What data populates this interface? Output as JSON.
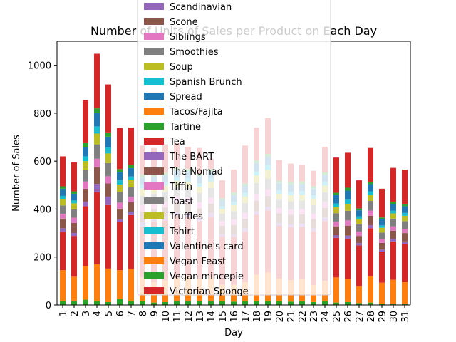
{
  "chart_data": {
    "type": "bar",
    "stacked": true,
    "title": "Number of Units of Sales per Product on Each Day",
    "xlabel": "Day",
    "ylabel": "Number of Sales",
    "ylim": [
      0,
      1100
    ],
    "yticks": [
      0,
      200,
      400,
      600,
      800,
      1000
    ],
    "grid": false,
    "legend_position": "upper center (overlapping plot)",
    "categories": [
      "1",
      "2",
      "3",
      "4",
      "5",
      "6",
      "7",
      "8",
      "9",
      "10",
      "11",
      "12",
      "13",
      "14",
      "15",
      "16",
      "17",
      "18",
      "19",
      "20",
      "21",
      "22",
      "23",
      "24",
      "25",
      "26",
      "27",
      "28",
      "29",
      "30",
      "31"
    ],
    "totals": [
      620,
      595,
      855,
      1048,
      920,
      738,
      740,
      665,
      655,
      670,
      675,
      660,
      655,
      610,
      520,
      565,
      665,
      740,
      780,
      605,
      590,
      585,
      560,
      660,
      615,
      635,
      520,
      655,
      485,
      572,
      565
    ],
    "series": [
      {
        "name": "Tartine",
        "color": "#2ca02c",
        "values": [
          15,
          18,
          22,
          15,
          12,
          25,
          15,
          15,
          10,
          12,
          18,
          18,
          18,
          18,
          15,
          14,
          15,
          16,
          15,
          15,
          14,
          16,
          12,
          15,
          10,
          12,
          8,
          10,
          3,
          5,
          5
        ]
      },
      {
        "name": "Vegan Feast",
        "color": "#ff7f0e",
        "values": [
          130,
          100,
          140,
          155,
          140,
          120,
          135,
          100,
          85,
          90,
          95,
          100,
          90,
          100,
          70,
          70,
          80,
          110,
          120,
          95,
          90,
          90,
          70,
          85,
          105,
          95,
          70,
          110,
          90,
          100,
          90
        ]
      },
      {
        "name": "Tea",
        "color": "#d62728",
        "values": [
          160,
          170,
          250,
          300,
          265,
          200,
          225,
          210,
          250,
          250,
          260,
          250,
          240,
          250,
          200,
          200,
          210,
          250,
          260,
          220,
          220,
          220,
          220,
          250,
          165,
          170,
          170,
          200,
          130,
          160,
          160
        ]
      },
      {
        "name": "The BART",
        "color": "#9467bd",
        "values": [
          15,
          12,
          18,
          35,
          35,
          12,
          12,
          20,
          15,
          15,
          15,
          15,
          15,
          15,
          10,
          12,
          15,
          15,
          15,
          12,
          12,
          12,
          12,
          15,
          10,
          12,
          10,
          12,
          8,
          10,
          10
        ]
      },
      {
        "name": "The Nomad",
        "color": "#8c564b",
        "values": [
          40,
          42,
          55,
          70,
          55,
          45,
          42,
          45,
          40,
          40,
          40,
          40,
          40,
          40,
          35,
          38,
          40,
          45,
          45,
          40,
          40,
          40,
          38,
          40,
          38,
          42,
          30,
          40,
          28,
          35,
          35
        ]
      },
      {
        "name": "Tiffin",
        "color": "#e377c2",
        "values": [
          20,
          22,
          30,
          35,
          30,
          25,
          22,
          25,
          25,
          25,
          25,
          25,
          25,
          25,
          20,
          22,
          25,
          28,
          28,
          22,
          22,
          22,
          22,
          25,
          20,
          22,
          18,
          22,
          15,
          18,
          18
        ]
      },
      {
        "name": "Toast",
        "color": "#7f7f7f",
        "values": [
          35,
          35,
          50,
          60,
          55,
          45,
          40,
          40,
          40,
          40,
          40,
          40,
          40,
          40,
          30,
          35,
          40,
          45,
          45,
          35,
          35,
          35,
          35,
          40,
          35,
          40,
          30,
          40,
          28,
          32,
          32
        ]
      },
      {
        "name": "Truffles",
        "color": "#bcbd22",
        "values": [
          25,
          25,
          35,
          45,
          40,
          30,
          30,
          30,
          25,
          25,
          25,
          25,
          25,
          25,
          20,
          25,
          28,
          30,
          35,
          25,
          25,
          25,
          25,
          28,
          25,
          28,
          22,
          25,
          20,
          22,
          22
        ]
      },
      {
        "name": "Tshirt",
        "color": "#17becf",
        "values": [
          15,
          12,
          20,
          30,
          25,
          18,
          15,
          18,
          15,
          15,
          15,
          15,
          15,
          15,
          12,
          15,
          15,
          18,
          20,
          15,
          15,
          15,
          15,
          15,
          15,
          18,
          12,
          15,
          10,
          12,
          12
        ]
      },
      {
        "name": "Valentine's card",
        "color": "#1f77b4",
        "values": [
          30,
          28,
          40,
          55,
          45,
          35,
          35,
          30,
          30,
          30,
          30,
          30,
          30,
          30,
          25,
          28,
          30,
          35,
          35,
          30,
          30,
          30,
          28,
          30,
          35,
          38,
          25,
          30,
          25,
          28,
          28
        ]
      },
      {
        "name": "Vegan mincepie",
        "color": "#2ca02c",
        "values": [
          10,
          10,
          15,
          20,
          18,
          12,
          12,
          12,
          10,
          10,
          10,
          10,
          10,
          10,
          8,
          10,
          10,
          12,
          12,
          10,
          10,
          10,
          10,
          10,
          10,
          12,
          8,
          10,
          8,
          8,
          8
        ]
      },
      {
        "name": "Victorian Sponge",
        "color": "#d62728",
        "values": [
          125,
          121,
          180,
          228,
          200,
          171,
          157,
          120,
          110,
          118,
          102,
          92,
          107,
          42,
          75,
          96,
          157,
          136,
          150,
          86,
          77,
          70,
          63,
          107,
          147,
          146,
          117,
          141,
          120,
          142,
          145
        ]
      }
    ],
    "legend_entries": [
      {
        "name": "Scandinavian",
        "color": "#9467bd"
      },
      {
        "name": "Scone",
        "color": "#8c564b"
      },
      {
        "name": "Siblings",
        "color": "#e377c2"
      },
      {
        "name": "Smoothies",
        "color": "#7f7f7f"
      },
      {
        "name": "Soup",
        "color": "#bcbd22"
      },
      {
        "name": "Spanish Brunch",
        "color": "#17becf"
      },
      {
        "name": "Spread",
        "color": "#1f77b4"
      },
      {
        "name": "Tacos/Fajita",
        "color": "#ff7f0e"
      },
      {
        "name": "Tartine",
        "color": "#2ca02c"
      },
      {
        "name": "Tea",
        "color": "#d62728"
      },
      {
        "name": "The BART",
        "color": "#9467bd"
      },
      {
        "name": "The Nomad",
        "color": "#8c564b"
      },
      {
        "name": "Tiffin",
        "color": "#e377c2"
      },
      {
        "name": "Toast",
        "color": "#7f7f7f"
      },
      {
        "name": "Truffles",
        "color": "#bcbd22"
      },
      {
        "name": "Tshirt",
        "color": "#17becf"
      },
      {
        "name": "Valentine's card",
        "color": "#1f77b4"
      },
      {
        "name": "Vegan Feast",
        "color": "#ff7f0e"
      },
      {
        "name": "Vegan mincepie",
        "color": "#2ca02c"
      },
      {
        "name": "Victorian Sponge",
        "color": "#d62728"
      }
    ]
  }
}
